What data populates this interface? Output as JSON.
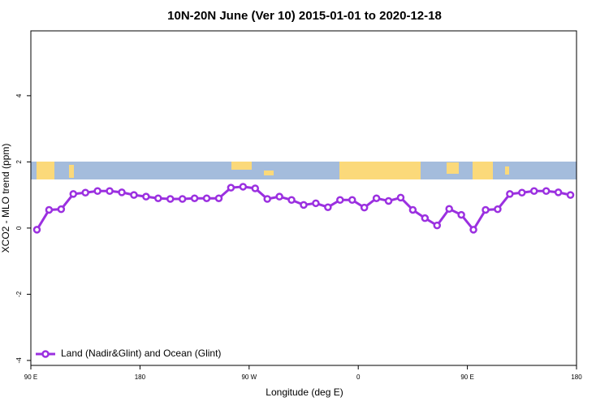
{
  "chart_data": {
    "type": "line",
    "title": "10N-20N June (Ver 10)   2015-01-01 to 2020-12-18",
    "x_label": "Longitude (deg E)",
    "y_label": "XCO2 - MLO trend (ppm)",
    "x": [
      95,
      105,
      115,
      125,
      135,
      145,
      155,
      165,
      175,
      185,
      195,
      205,
      215,
      225,
      235,
      245,
      255,
      265,
      275,
      285,
      295,
      305,
      315,
      325,
      335,
      345,
      355,
      365,
      375,
      385,
      395,
      405,
      415,
      425,
      435,
      445,
      455,
      465,
      475,
      485,
      495,
      505,
      515,
      525,
      535
    ],
    "series": [
      {
        "name": "Land (Nadir&Glint) and Ocean (Glint)",
        "color": "#9b30e0",
        "values": [
          -0.05,
          0.55,
          0.57,
          1.03,
          1.07,
          1.12,
          1.12,
          1.08,
          1.0,
          0.95,
          0.9,
          0.88,
          0.88,
          0.9,
          0.9,
          0.9,
          1.22,
          1.25,
          1.2,
          0.88,
          0.95,
          0.85,
          0.7,
          0.75,
          0.63,
          0.85,
          0.85,
          0.62,
          0.9,
          0.82,
          0.92,
          0.55,
          0.3,
          0.08,
          0.58,
          0.4,
          -0.05,
          0.55,
          0.57,
          1.03,
          1.07,
          1.12,
          1.12,
          1.08,
          1.0
        ]
      }
    ],
    "xlim": [
      90,
      540
    ],
    "xticks": [
      {
        "value": 90,
        "label": "90 E"
      },
      180,
      {
        "value": 270,
        "label": "90 W"
      },
      {
        "value": 360,
        "label": "0"
      },
      {
        "value": 450,
        "label": "90 E"
      },
      {
        "value": 540,
        "label": "180"
      }
    ],
    "ylim": [
      -4.15,
      5.96
    ],
    "yticks": [
      -4,
      -2,
      0,
      2,
      4
    ],
    "legend": "bottom-left"
  }
}
